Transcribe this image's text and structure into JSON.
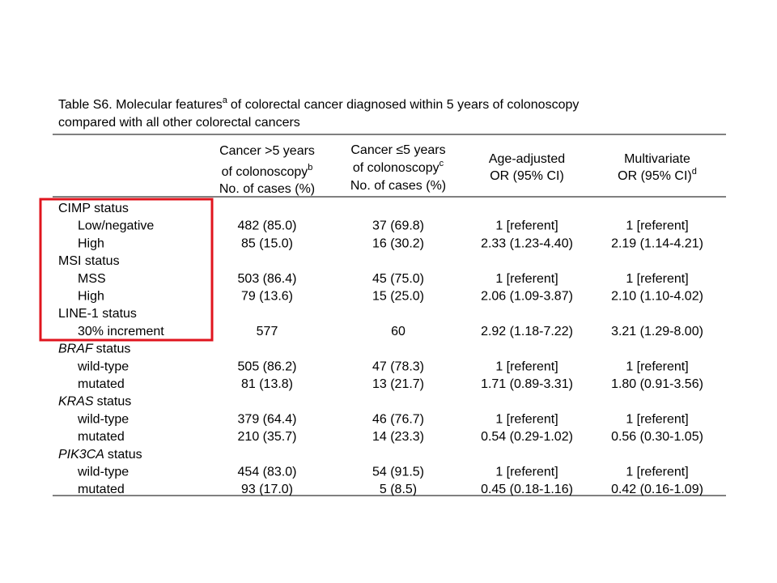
{
  "title": {
    "parts": [
      "Table S6. Molecular features",
      "of colorectal cancer diagnosed within 5 years of colonoscopy"
    ],
    "note": "a",
    "line2": "compared with all other colorectal cancers"
  },
  "table": {
    "columns": [
      {
        "lines": [
          {
            "text": "Cancer >5 years"
          },
          {
            "text": "of colonoscopy",
            "sup": "b"
          },
          {
            "text": "No. of cases (%)"
          }
        ]
      },
      {
        "lines": [
          {
            "text": "Cancer ≤5 years"
          },
          {
            "text": "of colonoscopy",
            "sup": "c"
          },
          {
            "text": "No. of cases (%)"
          }
        ]
      },
      {
        "lines": [
          {
            "text": "Age-adjusted"
          },
          {
            "text": "OR (95% CI)"
          }
        ]
      },
      {
        "lines": [
          {
            "text": "Multivariate"
          },
          {
            "text": "OR (95% CI)",
            "sup": "d"
          }
        ]
      }
    ],
    "groups": [
      {
        "label": "CIMP status",
        "rows": [
          {
            "label": "Low/negative",
            "cells": [
              "482 (85.0)",
              "37 (69.8)",
              "1 [referent]",
              "1 [referent]"
            ]
          },
          {
            "label": "High",
            "cells": [
              "85 (15.0)",
              "16 (30.2)",
              "2.33 (1.23-4.40)",
              "2.19 (1.14-4.21)"
            ]
          }
        ]
      },
      {
        "label": "MSI status",
        "rows": [
          {
            "label": "MSS",
            "cells": [
              "503 (86.4)",
              "45 (75.0)",
              "1 [referent]",
              "1 [referent]"
            ]
          },
          {
            "label": "High",
            "cells": [
              "79 (13.6)",
              "15 (25.0)",
              "2.06 (1.09-3.87)",
              "2.10 (1.10-4.02)"
            ]
          }
        ]
      },
      {
        "label": "LINE-1 status",
        "rows": [
          {
            "label": "30% increment",
            "cells": [
              "577",
              "60",
              "2.92 (1.18-7.22)",
              "3.21 (1.29-8.00)"
            ]
          }
        ]
      },
      {
        "label": "BRAF",
        "italic": true,
        "suffix": "status",
        "rows": [
          {
            "label": "wild-type",
            "cells": [
              "505 (86.2)",
              "47 (78.3)",
              "1 [referent]",
              "1 [referent]"
            ]
          },
          {
            "label": "mutated",
            "cells": [
              "81 (13.8)",
              "13 (21.7)",
              "1.71 (0.89-3.31)",
              "1.80 (0.91-3.56)"
            ]
          }
        ]
      },
      {
        "label": "KRAS",
        "italic": true,
        "suffix": "status",
        "rows": [
          {
            "label": "wild-type",
            "cells": [
              "379 (64.4)",
              "46 (76.7)",
              "1 [referent]",
              "1 [referent]"
            ]
          },
          {
            "label": "mutated",
            "cells": [
              "210 (35.7)",
              "14 (23.3)",
              "0.54 (0.29-1.02)",
              "0.56 (0.30-1.05)"
            ]
          }
        ]
      },
      {
        "label": "PIK3CA",
        "italic": true,
        "suffix": "status",
        "rows": [
          {
            "label": "wild-type",
            "cells": [
              "454 (83.0)",
              "54 (91.5)",
              "1 [referent]",
              "1 [referent]"
            ]
          },
          {
            "label": "mutated",
            "cells": [
              "93 (17.0)",
              "5 (8.5)",
              "0.45 (0.18-1.16)",
              "0.42 (0.16-1.09)"
            ]
          }
        ]
      }
    ]
  }
}
